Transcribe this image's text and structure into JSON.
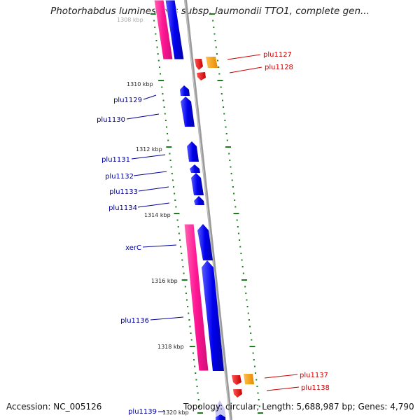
{
  "title": "Photorhabdus luminescens subsp. laumondii TTO1, complete gen...",
  "footer": {
    "accession": "Accession: NC_005126",
    "topology": "Topology: circular; Length: 5,688,987 bp; Genes: 4,790"
  },
  "colors": {
    "backbone": "#8c8c8c",
    "forward_gene": "#0000ee",
    "reverse_gene": "#ee0000",
    "orange_gene": "#ff9900",
    "cds_pink": "#ff1493",
    "tick": "#1a7f1a",
    "left_label": "#000099",
    "right_label": "#cc0000"
  },
  "scale_labels": [
    "1308 kbp",
    "1310 kbp",
    "1312 kbp",
    "1314 kbp",
    "1316 kbp",
    "1318 kbp",
    "1320 kbp"
  ],
  "genes_left": [
    "plu1129",
    "plu1130",
    "plu1131",
    "plu1132",
    "plu1133",
    "plu1134",
    "xerC",
    "plu1136",
    "plu1139"
  ],
  "genes_right": [
    "plu1127",
    "plu1128",
    "plu1137",
    "plu1138"
  ]
}
